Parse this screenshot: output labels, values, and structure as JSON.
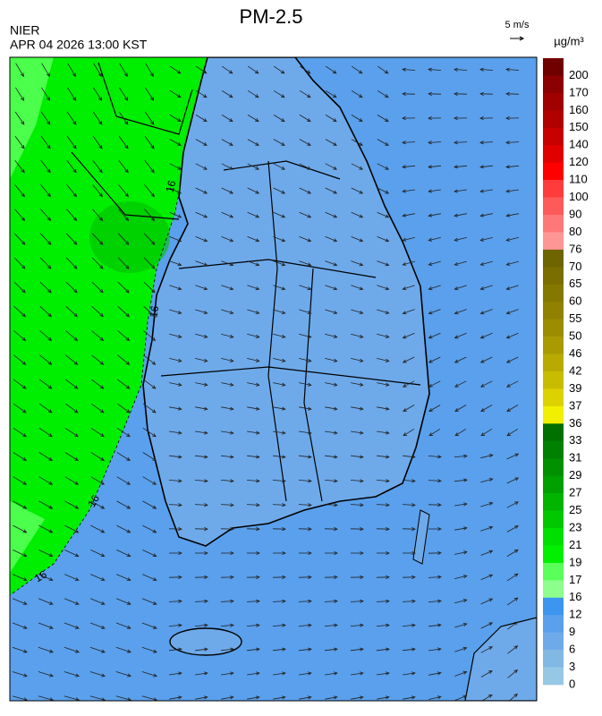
{
  "header": {
    "title": "PM-2.5",
    "source": "NIER",
    "time": "APR 04 2026 13:00 KST"
  },
  "wind_scale": {
    "label": "5 m/s"
  },
  "colorbar": {
    "unit": "µg/m³",
    "labels": [
      "200",
      "170",
      "160",
      "150",
      "140",
      "120",
      "110",
      "100",
      "90",
      "80",
      "76",
      "70",
      "65",
      "60",
      "55",
      "50",
      "46",
      "42",
      "39",
      "37",
      "36",
      "33",
      "31",
      "29",
      "27",
      "25",
      "23",
      "21",
      "19",
      "17",
      "16",
      "12",
      "9",
      "6",
      "3",
      "0"
    ],
    "colors": [
      "#700000",
      "#8b0000",
      "#a00000",
      "#b00000",
      "#c80000",
      "#e00000",
      "#ff0000",
      "#ff3c3c",
      "#ff5a5a",
      "#ff7878",
      "#ff9696",
      "#6e6400",
      "#7a6e00",
      "#857800",
      "#908200",
      "#9c8c00",
      "#a89a00",
      "#b8aa00",
      "#c8bc00",
      "#dcd200",
      "#f0f000",
      "#007000",
      "#008000",
      "#009000",
      "#00a000",
      "#00b400",
      "#00c800",
      "#00e000",
      "#00f000",
      "#5aff5a",
      "#8cff8c",
      "#3c96f0",
      "#5aa0ec",
      "#6eaaea",
      "#82b8e4",
      "#96c8e6"
    ]
  },
  "contour_labels": [
    "16",
    "16",
    "16",
    "16"
  ]
}
